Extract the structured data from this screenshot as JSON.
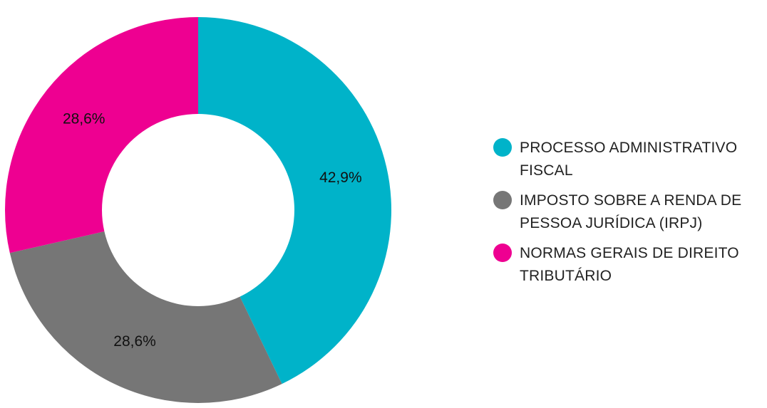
{
  "chart_data": {
    "type": "pie",
    "variant": "donut",
    "slices": [
      {
        "name": "PROCESSO ADMINISTRATIVO\nFISCAL",
        "value": 42.9,
        "label": "42,9%",
        "color": "#00B3C9"
      },
      {
        "name": "IMPOSTO SOBRE A RENDA DE\nPESSOA JURÍDICA (IRPJ)",
        "value": 28.6,
        "label": "28,6%",
        "color": "#767676"
      },
      {
        "name": "NORMAS GERAIS DE DIREITO\nTRIBUTÁRIO",
        "value": 28.6,
        "label": "28,6%",
        "color": "#EE0091"
      }
    ],
    "legend_position": "right",
    "start_angle": "top",
    "direction": "clockwise"
  }
}
